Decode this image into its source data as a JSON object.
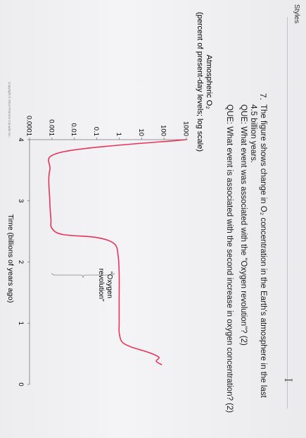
{
  "toolbar": {
    "styles_label": "Styles"
  },
  "cursor_glyph": "I",
  "question": {
    "number": "7.",
    "lines": [
      "The figure shows change in O₂ concentration in the Earth's atmosphere in the last",
      "4.5 billion years.",
      "QUE: What event was associated with the \"Oxygen revolution\"? (2)",
      "QUE: What event is associated with the second increase in oxygen concentration? (2)"
    ]
  },
  "figure": {
    "ylabel_line1": "Atmospheric O₂",
    "ylabel_line2": "(percent of present-day levels; log scale)",
    "xlabel": "Time (billions of years ago)",
    "annotation_line1": "\"Oxygen",
    "annotation_line2": "revolution\"",
    "copyright": "Copyright © 2014 Pearson Canada Inc.",
    "curve_color": "#e8345a"
  },
  "chart_data": {
    "type": "line",
    "xlabel": "Time (billions of years ago)",
    "ylabel": "Atmospheric O₂ (percent of present-day levels; log scale)",
    "x_ticks": [
      "4",
      "3",
      "2",
      "1",
      "0"
    ],
    "y_ticks": [
      "1000",
      "100",
      "10",
      "1",
      "0.1",
      "0.01",
      "0.001",
      "0.0001"
    ],
    "xlim": [
      4.0,
      0
    ],
    "ylim": [
      0.0001,
      1000
    ],
    "y_scale": "log",
    "grid": false,
    "series": [
      {
        "x": [
          4.0,
          3.8,
          3.5,
          3.0,
          2.7,
          2.55,
          2.45,
          2.4,
          2.3,
          2.1,
          1.8,
          1.4,
          1.0,
          0.85,
          0.7,
          0.62,
          0.55,
          0.5,
          0.44,
          0.38,
          0.32
        ],
        "y": [
          1000,
          0.003,
          0.0008,
          0.0008,
          0.0009,
          0.001,
          0.003,
          0.1,
          0.6,
          0.9,
          1.0,
          1.0,
          1.0,
          1.0,
          1.3,
          3,
          12,
          30,
          60,
          45,
          80
        ]
      }
    ]
  }
}
